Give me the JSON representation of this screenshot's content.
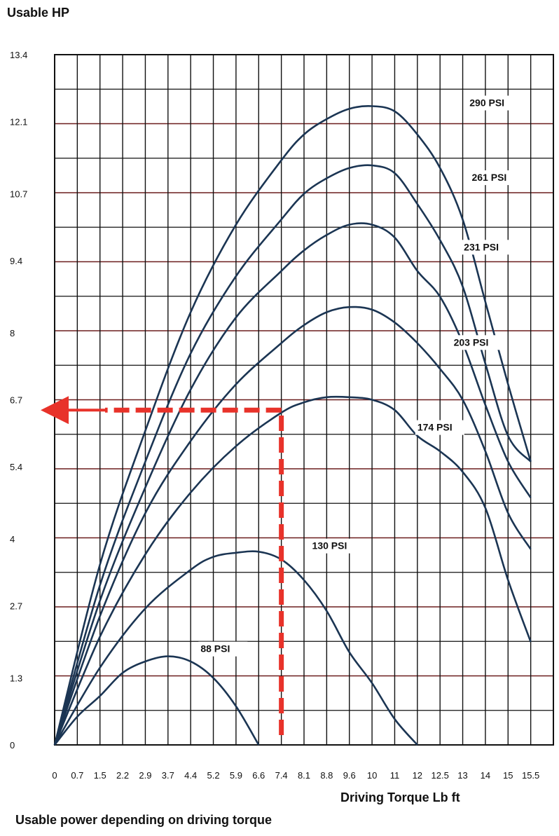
{
  "chart_data": {
    "type": "line",
    "title": "Usable HP",
    "xlabel": "Driving Torque Lb ft",
    "caption": "Usable power depending on driving torque",
    "ylim": [
      0,
      13.4
    ],
    "y_ticks": [
      "0",
      "1.3",
      "2.7",
      "4",
      "5.4",
      "6.7",
      "8",
      "9.4",
      "10.7",
      "12.1",
      "13.4"
    ],
    "x_ticks": [
      "0",
      "0.7",
      "1.5",
      "2.2",
      "2.9",
      "3.7",
      "4.4",
      "5.2",
      "5.9",
      "6.6",
      "7.4",
      "8.1",
      "8.8",
      "9.6",
      "10",
      "11",
      "12",
      "12.5",
      "13",
      "14",
      "15",
      "15.5"
    ],
    "grid": true,
    "line_color": "#1b3553",
    "highlight_color": "#e8322a",
    "series": [
      {
        "name": "88 PSI",
        "x": [
          0,
          0.7,
          1.5,
          2.2,
          2.9,
          3.7,
          4.4,
          5.2,
          5.9,
          6.6
        ],
        "y": [
          0,
          0.55,
          0.95,
          1.4,
          1.62,
          1.72,
          1.62,
          1.3,
          0.75,
          0
        ]
      },
      {
        "name": "130 PSI",
        "x": [
          0,
          1.5,
          2.9,
          4.4,
          5.2,
          5.9,
          6.6,
          7.4,
          8.1,
          8.8,
          9.6,
          10,
          11,
          12
        ],
        "y": [
          0,
          1.5,
          2.65,
          3.4,
          3.65,
          3.73,
          3.75,
          3.6,
          3.2,
          2.6,
          1.8,
          1.2,
          0.5,
          0
        ]
      },
      {
        "name": "174 PSI",
        "x": [
          0,
          1.5,
          2.9,
          4.4,
          5.9,
          7.4,
          8.1,
          8.8,
          9.6,
          10,
          11,
          12,
          12.5,
          13,
          14,
          15,
          15.5
        ],
        "y": [
          0,
          2.1,
          3.7,
          4.9,
          5.8,
          6.45,
          6.65,
          6.75,
          6.75,
          6.7,
          6.5,
          6.0,
          5.7,
          5.3,
          4.6,
          3.2,
          2.0
        ]
      },
      {
        "name": "203 PSI",
        "x": [
          0,
          1.5,
          2.9,
          4.4,
          5.9,
          7.4,
          8.1,
          8.8,
          9.6,
          10,
          11,
          12,
          12.5,
          13,
          14,
          15,
          15.5
        ],
        "y": [
          0,
          2.5,
          4.5,
          5.9,
          7.0,
          7.8,
          8.15,
          8.4,
          8.5,
          8.45,
          8.2,
          7.8,
          7.3,
          6.7,
          5.7,
          4.5,
          3.8
        ]
      },
      {
        "name": "231 PSI",
        "x": [
          0,
          1.5,
          2.9,
          4.4,
          5.9,
          7.4,
          8.1,
          8.8,
          9.6,
          10,
          11,
          12,
          12.5,
          13,
          14,
          15,
          15.5
        ],
        "y": [
          0,
          2.8,
          5.0,
          6.9,
          8.3,
          9.2,
          9.6,
          9.9,
          10.1,
          10.1,
          9.85,
          9.2,
          8.7,
          7.8,
          6.6,
          5.5,
          4.8
        ]
      },
      {
        "name": "261 PSI",
        "x": [
          0,
          1.5,
          2.9,
          4.4,
          5.9,
          7.4,
          8.1,
          8.8,
          9.6,
          10,
          11,
          12,
          12.5,
          13,
          14,
          15,
          15.5
        ],
        "y": [
          0,
          3.1,
          5.5,
          7.6,
          9.1,
          10.2,
          10.7,
          11.0,
          11.2,
          11.25,
          11.1,
          10.5,
          9.8,
          8.9,
          7.4,
          6.0,
          5.5
        ]
      },
      {
        "name": "290 PSI",
        "x": [
          0,
          1.5,
          2.9,
          4.4,
          5.9,
          7.4,
          8.1,
          8.8,
          9.6,
          10,
          11,
          12,
          12.5,
          13,
          14,
          15,
          15.5
        ],
        "y": [
          0,
          3.5,
          6.1,
          8.4,
          10.1,
          11.35,
          11.85,
          12.15,
          12.35,
          12.4,
          12.3,
          11.85,
          11.2,
          10.2,
          8.6,
          7.0,
          5.5
        ]
      }
    ],
    "annotation": {
      "x": 7.4,
      "y": 6.5
    }
  }
}
